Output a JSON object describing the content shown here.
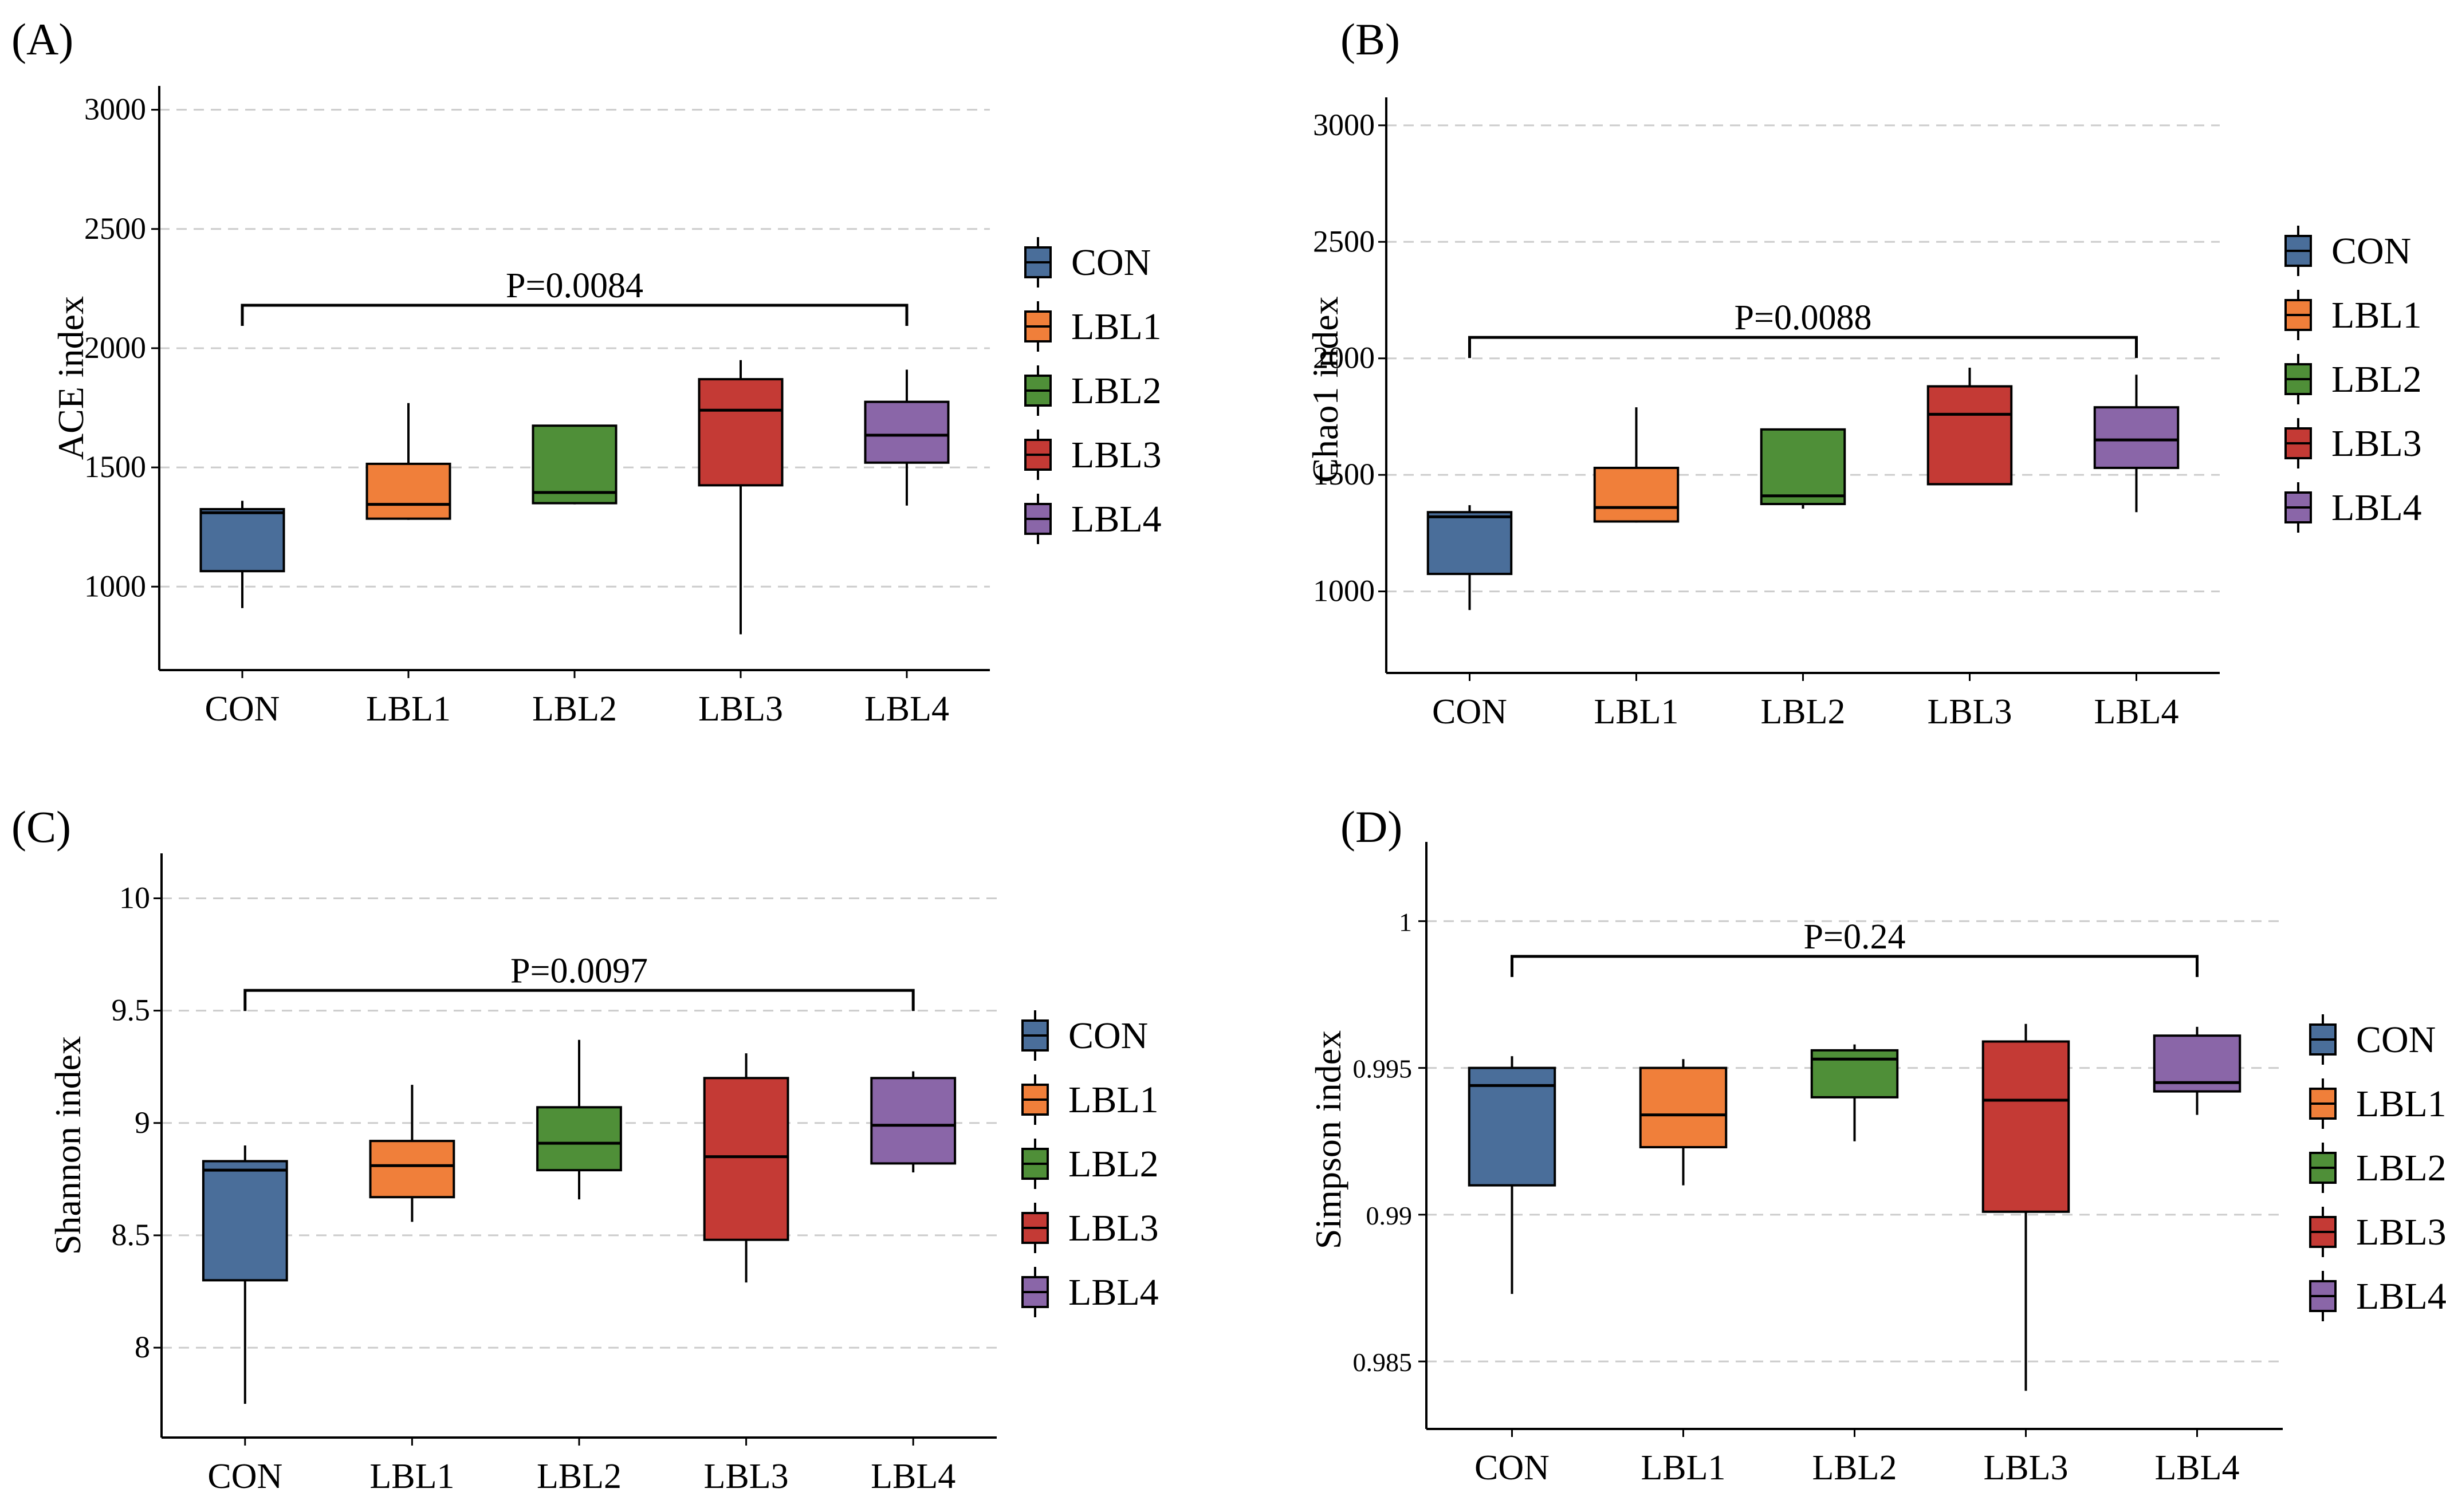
{
  "figure": {
    "colors": {
      "CON": "#4a6e9a",
      "LBL1": "#f07f3a",
      "LBL2": "#4f8f38",
      "LBL3": "#c43a35",
      "LBL4": "#8a66a8",
      "grid": "#cccccc",
      "axis": "#000000"
    }
  },
  "chart_data": [
    {
      "type": "boxplot",
      "panel_label": "(A)",
      "title": "",
      "xlabel": "",
      "ylabel": "ACE index",
      "categories": [
        "CON",
        "LBL1",
        "LBL2",
        "LBL3",
        "LBL4"
      ],
      "yticks": [
        1000,
        1500,
        2000,
        2500,
        3000
      ],
      "ytick_labels": [
        "1000",
        "1500",
        "2000",
        "2500",
        "3000"
      ],
      "ylim": [
        650,
        3100
      ],
      "grid": "horizontal-dashed",
      "boxes": [
        {
          "min": 910,
          "q1": 1065,
          "median": 1310,
          "q3": 1325,
          "max": 1360
        },
        {
          "min": 1280,
          "q1": 1285,
          "median": 1345,
          "q3": 1515,
          "max": 1770
        },
        {
          "min": 1345,
          "q1": 1350,
          "median": 1395,
          "q3": 1675,
          "max": 1675
        },
        {
          "min": 800,
          "q1": 1425,
          "median": 1740,
          "q3": 1870,
          "max": 1950
        },
        {
          "min": 1340,
          "q1": 1520,
          "median": 1635,
          "q3": 1775,
          "max": 1910
        }
      ],
      "annotation": {
        "text": "P=0.0084",
        "from": "CON",
        "to": "LBL4",
        "y": 2180
      },
      "legend": {
        "title": "",
        "entries": [
          "CON",
          "LBL1",
          "LBL2",
          "LBL3",
          "LBL4"
        ],
        "placement": "right"
      }
    },
    {
      "type": "boxplot",
      "panel_label": "(B)",
      "title": "",
      "xlabel": "",
      "ylabel": "Chao1 index",
      "categories": [
        "CON",
        "LBL1",
        "LBL2",
        "LBL3",
        "LBL4"
      ],
      "yticks": [
        1000,
        1500,
        2000,
        2500,
        3000
      ],
      "ytick_labels": [
        "1000",
        "1500",
        "2000",
        "2500",
        "3000"
      ],
      "ylim": [
        650,
        3120
      ],
      "grid": "horizontal-dashed",
      "boxes": [
        {
          "min": 920,
          "q1": 1075,
          "median": 1320,
          "q3": 1340,
          "max": 1370
        },
        {
          "min": 1295,
          "q1": 1300,
          "median": 1360,
          "q3": 1530,
          "max": 1790
        },
        {
          "min": 1355,
          "q1": 1375,
          "median": 1410,
          "q3": 1695,
          "max": 1695
        },
        {
          "min": 1460,
          "q1": 1460,
          "median": 1760,
          "q3": 1880,
          "max": 1960
        },
        {
          "min": 1340,
          "q1": 1530,
          "median": 1650,
          "q3": 1790,
          "max": 1930
        }
      ],
      "annotation": {
        "text": "P=0.0088",
        "from": "CON",
        "to": "LBL4",
        "y": 2090
      },
      "legend": {
        "title": "",
        "entries": [
          "CON",
          "LBL1",
          "LBL2",
          "LBL3",
          "LBL4"
        ],
        "placement": "right"
      }
    },
    {
      "type": "boxplot",
      "panel_label": "(C)",
      "title": "",
      "xlabel": "",
      "ylabel": "Shannon index",
      "categories": [
        "CON",
        "LBL1",
        "LBL2",
        "LBL3",
        "LBL4"
      ],
      "yticks": [
        8,
        8.5,
        9,
        9.5,
        10
      ],
      "ytick_labels": [
        "8",
        "8.5",
        "9",
        "9.5",
        "10"
      ],
      "ylim": [
        7.6,
        10.2
      ],
      "grid": "horizontal-dashed",
      "boxes": [
        {
          "min": 7.75,
          "q1": 8.3,
          "median": 8.79,
          "q3": 8.83,
          "max": 8.9
        },
        {
          "min": 8.56,
          "q1": 8.67,
          "median": 8.81,
          "q3": 8.92,
          "max": 9.17
        },
        {
          "min": 8.66,
          "q1": 8.79,
          "median": 8.91,
          "q3": 9.07,
          "max": 9.37
        },
        {
          "min": 8.29,
          "q1": 8.48,
          "median": 8.85,
          "q3": 9.2,
          "max": 9.31
        },
        {
          "min": 8.78,
          "q1": 8.82,
          "median": 8.99,
          "q3": 9.2,
          "max": 9.23
        }
      ],
      "annotation": {
        "text": "P=0.0097",
        "from": "CON",
        "to": "LBL4",
        "y": 9.59
      },
      "legend": {
        "title": "",
        "entries": [
          "CON",
          "LBL1",
          "LBL2",
          "LBL3",
          "LBL4"
        ],
        "placement": "right"
      }
    },
    {
      "type": "boxplot",
      "panel_label": "(D)",
      "title": "",
      "xlabel": "",
      "ylabel": "Simpson index",
      "categories": [
        "CON",
        "LBL1",
        "LBL2",
        "LBL3",
        "LBL4"
      ],
      "yticks": [
        0.985,
        0.99,
        0.995,
        1
      ],
      "ytick_labels": [
        "0.985",
        "0.99",
        "0.995",
        "1"
      ],
      "ylim": [
        0.9827,
        1.0027
      ],
      "grid": "horizontal-dashed",
      "boxes": [
        {
          "min": 0.9873,
          "q1": 0.991,
          "median": 0.9944,
          "q3": 0.995,
          "max": 0.9954
        },
        {
          "min": 0.991,
          "q1": 0.9923,
          "median": 0.9934,
          "q3": 0.995,
          "max": 0.9953
        },
        {
          "min": 0.9925,
          "q1": 0.994,
          "median": 0.9953,
          "q3": 0.9956,
          "max": 0.9958
        },
        {
          "min": 0.984,
          "q1": 0.9901,
          "median": 0.9939,
          "q3": 0.9959,
          "max": 0.9965
        },
        {
          "min": 0.9934,
          "q1": 0.9942,
          "median": 0.9945,
          "q3": 0.9961,
          "max": 0.9964
        }
      ],
      "annotation": {
        "text": "P=0.24",
        "from": "CON",
        "to": "LBL4",
        "y": 0.9988
      },
      "legend": {
        "title": "",
        "entries": [
          "CON",
          "LBL1",
          "LBL2",
          "LBL3",
          "LBL4"
        ],
        "placement": "right"
      }
    }
  ]
}
